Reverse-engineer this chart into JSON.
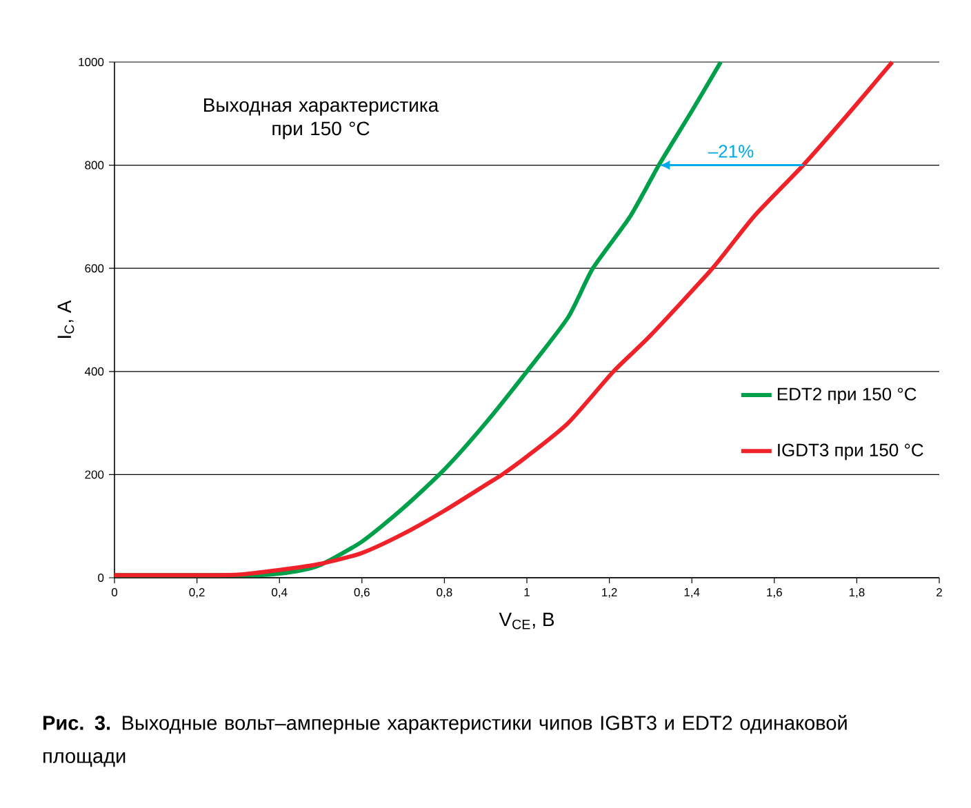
{
  "chart_data": {
    "type": "line",
    "xlabel": "V$_{CE}$, В",
    "ylabel": "I$_{C}$, A",
    "xlim": [
      0,
      2
    ],
    "ylim": [
      0,
      1000
    ],
    "xticks": [
      0,
      {
        "value": 0.2,
        "label": "0,2"
      },
      {
        "value": 0.4,
        "label": "0,4"
      },
      {
        "value": 0.6,
        "label": "0,6"
      },
      {
        "value": 0.8,
        "label": "0,8"
      },
      1,
      {
        "value": 1.2,
        "label": "1,2"
      },
      {
        "value": 1.4,
        "label": "1,4"
      },
      {
        "value": 1.6,
        "label": "1,6"
      },
      {
        "value": 1.8,
        "label": "1,8"
      },
      2
    ],
    "yticks": [
      0,
      200,
      400,
      600,
      800,
      1000
    ],
    "grid": "y",
    "legend": "right",
    "marker": "none",
    "line_style": "solid",
    "series": [
      {
        "name": "EDT2 при 150 °C",
        "color": "#00a04b",
        "x": [
          0,
          0.2,
          0.3,
          0.35,
          0.4,
          0.45,
          0.5,
          0.6,
          0.7,
          0.8,
          0.9,
          1.0,
          1.1,
          1.16,
          1.25,
          1.32,
          1.4,
          1.47
        ],
        "values": [
          5,
          5,
          5,
          5,
          8,
          14,
          25,
          70,
          135,
          210,
          300,
          400,
          505,
          600,
          700,
          800,
          905,
          1000
        ]
      },
      {
        "name": "IGDT3 при 150 °C",
        "color": "#ee2228",
        "x": [
          0,
          0.2,
          0.3,
          0.4,
          0.5,
          0.6,
          0.7,
          0.8,
          0.9,
          0.94,
          1.0,
          1.1,
          1.21,
          1.3,
          1.45,
          1.55,
          1.67,
          1.78,
          1.886
        ],
        "values": [
          5,
          5,
          6,
          15,
          27,
          48,
          85,
          130,
          180,
          200,
          235,
          300,
          400,
          470,
          600,
          700,
          800,
          900,
          1000
        ]
      }
    ],
    "annotations": [
      "Выходная характеристика при 150 °C",
      "–21%",
      "**Рис. 3.** Выходные вольт–амперные характеристики чипов IGBT3 и EDT2 одинаковой площади"
    ]
  }
}
